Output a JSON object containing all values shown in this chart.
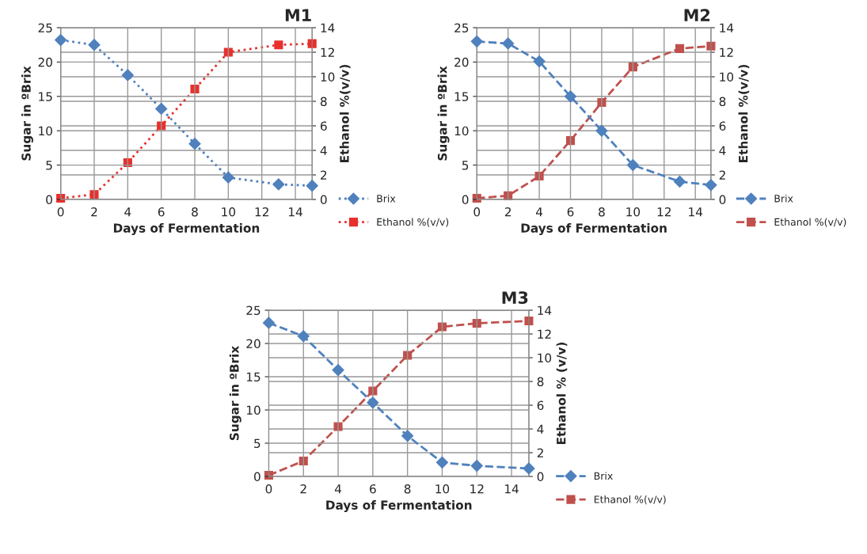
{
  "chart_data": [
    {
      "type": "line",
      "title": "M1",
      "xlabel": "Days of Fermentation",
      "ylabel": "Sugar in ºBrix",
      "y2label": "Ethanol %(v/v)",
      "xlim": [
        0,
        15
      ],
      "xticks": [
        0,
        2,
        4,
        6,
        8,
        10,
        12,
        14
      ],
      "ylim": [
        0,
        25
      ],
      "yticks": [
        0,
        5,
        10,
        15,
        20,
        25
      ],
      "y2lim": [
        0,
        14
      ],
      "y2ticks": [
        0,
        2,
        4,
        6,
        8,
        10,
        12,
        14
      ],
      "grid": true,
      "legend": "bottom right",
      "line_style": "dotted",
      "series": [
        {
          "name": "Brix",
          "color": "#4f81bd",
          "marker": "diamond",
          "x": [
            0,
            2,
            4,
            6,
            8,
            10,
            13,
            15
          ],
          "values": [
            23.2,
            22.5,
            18.1,
            13.2,
            8.1,
            3.2,
            2.2,
            2.0
          ]
        },
        {
          "name": "Ethanol %(v/v)",
          "color": "#e8302c",
          "marker": "square",
          "axis": "y2",
          "x": [
            0,
            2,
            4,
            6,
            8,
            10,
            13,
            15
          ],
          "values": [
            0.1,
            0.4,
            3.0,
            6.0,
            9.0,
            12.0,
            12.6,
            12.7
          ]
        }
      ]
    },
    {
      "type": "line",
      "title": "M2",
      "xlabel": "Days of Fermentation",
      "ylabel": "Sugar in ºBrix",
      "y2label": "Ethanol %(v/v)",
      "xlim": [
        0,
        15
      ],
      "xticks": [
        0,
        2,
        4,
        6,
        8,
        10,
        12,
        14
      ],
      "ylim": [
        0,
        25
      ],
      "yticks": [
        0,
        5,
        10,
        15,
        20,
        25
      ],
      "y2lim": [
        0,
        14
      ],
      "y2ticks": [
        0,
        2,
        4,
        6,
        8,
        10,
        12,
        14
      ],
      "grid": true,
      "legend": "bottom right",
      "line_style": "dashed",
      "series": [
        {
          "name": "Brix",
          "color": "#4f81bd",
          "marker": "diamond",
          "x": [
            0,
            2,
            4,
            6,
            8,
            10,
            13,
            15
          ],
          "values": [
            23.0,
            22.7,
            20.1,
            15.0,
            10.0,
            5.0,
            2.6,
            2.1
          ]
        },
        {
          "name": "Ethanol %(v/v)",
          "color": "#c0504d",
          "marker": "square",
          "axis": "y2",
          "x": [
            0,
            2,
            4,
            6,
            8,
            10,
            13,
            15
          ],
          "values": [
            0.1,
            0.3,
            1.9,
            4.8,
            7.9,
            10.8,
            12.3,
            12.5
          ]
        }
      ]
    },
    {
      "type": "line",
      "title": "M3",
      "xlabel": "Days of Fermentation",
      "ylabel": "Sugar in ºBrix",
      "y2label": "Ethanol % (v/v)",
      "xlim": [
        0,
        15
      ],
      "xticks": [
        0,
        2,
        4,
        6,
        8,
        10,
        12,
        14
      ],
      "ylim": [
        0,
        25
      ],
      "yticks": [
        0,
        5,
        10,
        15,
        20,
        25
      ],
      "y2lim": [
        0,
        14
      ],
      "y2ticks": [
        0,
        2,
        4,
        6,
        8,
        10,
        12,
        14
      ],
      "grid": true,
      "legend": "bottom right",
      "line_style": "dashed",
      "series": [
        {
          "name": "Brix",
          "color": "#4f81bd",
          "marker": "diamond",
          "x": [
            0,
            2,
            4,
            6,
            8,
            10,
            12,
            15
          ],
          "values": [
            23.1,
            21.1,
            16.0,
            11.1,
            6.1,
            2.1,
            1.6,
            1.2
          ]
        },
        {
          "name": "Ethanol %(v/v)",
          "color": "#c0504d",
          "marker": "square",
          "axis": "y2",
          "x": [
            0,
            2,
            4,
            6,
            8,
            10,
            12,
            15
          ],
          "values": [
            0.1,
            1.3,
            4.2,
            7.2,
            10.2,
            12.6,
            12.9,
            13.1
          ]
        }
      ]
    }
  ]
}
